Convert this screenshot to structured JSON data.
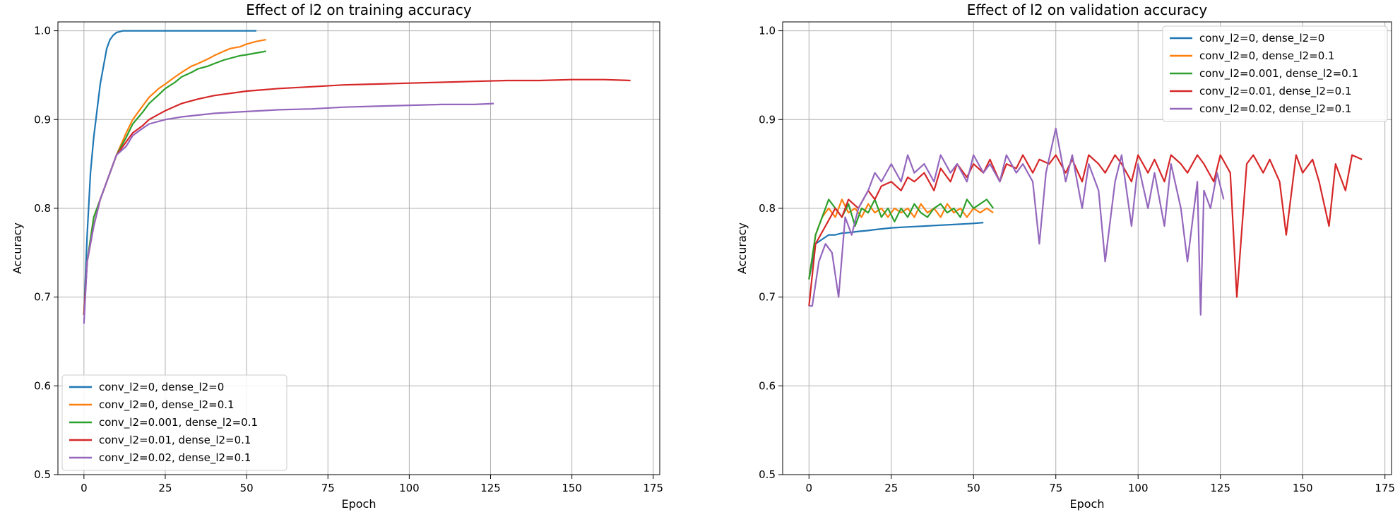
{
  "chart_data": [
    {
      "type": "line",
      "title": "Effect of l2 on training accuracy",
      "xlabel": "Epoch",
      "ylabel": "Accuracy",
      "xlim": [
        -8,
        177
      ],
      "ylim": [
        0.5,
        1.01
      ],
      "xticks": [
        0,
        25,
        50,
        75,
        100,
        125,
        150,
        175
      ],
      "yticks": [
        0.5,
        0.6,
        0.7,
        0.8,
        0.9,
        1.0
      ],
      "ytick_labels": [
        "0.5",
        "0.6",
        "0.7",
        "0.8",
        "0.9",
        "1.0"
      ],
      "grid": true,
      "legend_position": "lower-left",
      "series": [
        {
          "name": "conv_l2=0, dense_l2=0",
          "color": "#1f77b4",
          "x": [
            0,
            1,
            2,
            3,
            4,
            5,
            6,
            7,
            8,
            9,
            10,
            11,
            12,
            14,
            20,
            30,
            40,
            53
          ],
          "y": [
            0.68,
            0.77,
            0.84,
            0.88,
            0.91,
            0.94,
            0.96,
            0.98,
            0.99,
            0.995,
            0.998,
            0.999,
            1.0,
            1.0,
            1.0,
            1.0,
            1.0,
            1.0
          ]
        },
        {
          "name": "conv_l2=0, dense_l2=0.1",
          "color": "#ff7f0e",
          "x": [
            0,
            1,
            3,
            5,
            8,
            10,
            13,
            15,
            18,
            20,
            23,
            25,
            28,
            30,
            33,
            35,
            38,
            40,
            43,
            45,
            48,
            50,
            53,
            56
          ],
          "y": [
            0.68,
            0.74,
            0.79,
            0.81,
            0.84,
            0.86,
            0.885,
            0.9,
            0.915,
            0.925,
            0.935,
            0.94,
            0.948,
            0.953,
            0.96,
            0.963,
            0.968,
            0.972,
            0.977,
            0.98,
            0.982,
            0.985,
            0.988,
            0.99
          ]
        },
        {
          "name": "conv_l2=0.001, dense_l2=0.1",
          "color": "#2ca02c",
          "x": [
            0,
            1,
            3,
            5,
            8,
            10,
            13,
            15,
            18,
            20,
            23,
            25,
            28,
            30,
            33,
            35,
            38,
            40,
            43,
            45,
            48,
            50,
            53,
            56
          ],
          "y": [
            0.68,
            0.74,
            0.79,
            0.81,
            0.84,
            0.86,
            0.88,
            0.895,
            0.908,
            0.918,
            0.928,
            0.935,
            0.942,
            0.948,
            0.953,
            0.957,
            0.96,
            0.963,
            0.967,
            0.969,
            0.972,
            0.973,
            0.975,
            0.977
          ]
        },
        {
          "name": "conv_l2=0.01, dense_l2=0.1",
          "color": "#d62728",
          "x": [
            0,
            1,
            3,
            5,
            8,
            10,
            13,
            15,
            18,
            20,
            25,
            30,
            35,
            40,
            50,
            60,
            70,
            80,
            90,
            100,
            110,
            120,
            130,
            140,
            150,
            160,
            168
          ],
          "y": [
            0.68,
            0.74,
            0.78,
            0.81,
            0.84,
            0.86,
            0.875,
            0.885,
            0.893,
            0.9,
            0.91,
            0.918,
            0.923,
            0.927,
            0.932,
            0.935,
            0.937,
            0.939,
            0.94,
            0.941,
            0.942,
            0.943,
            0.944,
            0.944,
            0.945,
            0.945,
            0.944
          ]
        },
        {
          "name": "conv_l2=0.02, dense_l2=0.1",
          "color": "#9467bd",
          "x": [
            0,
            1,
            3,
            5,
            8,
            10,
            13,
            15,
            18,
            20,
            25,
            30,
            35,
            40,
            50,
            60,
            70,
            80,
            90,
            100,
            110,
            120,
            126
          ],
          "y": [
            0.67,
            0.74,
            0.78,
            0.81,
            0.84,
            0.86,
            0.87,
            0.882,
            0.89,
            0.895,
            0.9,
            0.903,
            0.905,
            0.907,
            0.909,
            0.911,
            0.912,
            0.914,
            0.915,
            0.916,
            0.917,
            0.917,
            0.918
          ]
        }
      ]
    },
    {
      "type": "line",
      "title": "Effect of l2 on validation accuracy",
      "xlabel": "Epoch",
      "ylabel": "Accuracy",
      "xlim": [
        -8,
        177
      ],
      "ylim": [
        0.5,
        1.01
      ],
      "xticks": [
        0,
        25,
        50,
        75,
        100,
        125,
        150,
        175
      ],
      "yticks": [
        0.5,
        0.6,
        0.7,
        0.8,
        0.9,
        1.0
      ],
      "ytick_labels": [
        "0.5",
        "0.6",
        "0.7",
        "0.8",
        "0.9",
        "1.0"
      ],
      "grid": true,
      "legend_position": "upper-right",
      "series": [
        {
          "name": "conv_l2=0, dense_l2=0",
          "color": "#1f77b4",
          "x": [
            0,
            2,
            4,
            6,
            8,
            10,
            13,
            15,
            18,
            20,
            25,
            30,
            35,
            40,
            45,
            50,
            53
          ],
          "y": [
            0.72,
            0.76,
            0.765,
            0.77,
            0.77,
            0.772,
            0.773,
            0.774,
            0.775,
            0.776,
            0.778,
            0.779,
            0.78,
            0.781,
            0.782,
            0.783,
            0.784
          ]
        },
        {
          "name": "conv_l2=0, dense_l2=0.1",
          "color": "#ff7f0e",
          "x": [
            0,
            2,
            4,
            6,
            8,
            10,
            12,
            14,
            16,
            18,
            20,
            22,
            24,
            26,
            28,
            30,
            32,
            34,
            36,
            38,
            40,
            42,
            44,
            46,
            48,
            50,
            52,
            54,
            56
          ],
          "y": [
            0.72,
            0.77,
            0.79,
            0.8,
            0.79,
            0.81,
            0.795,
            0.8,
            0.79,
            0.805,
            0.795,
            0.8,
            0.79,
            0.8,
            0.795,
            0.8,
            0.79,
            0.805,
            0.795,
            0.8,
            0.79,
            0.805,
            0.795,
            0.8,
            0.79,
            0.8,
            0.795,
            0.8,
            0.795
          ]
        },
        {
          "name": "conv_l2=0.001, dense_l2=0.1",
          "color": "#2ca02c",
          "x": [
            0,
            2,
            4,
            6,
            8,
            10,
            12,
            14,
            16,
            18,
            20,
            22,
            24,
            26,
            28,
            30,
            32,
            34,
            36,
            38,
            40,
            42,
            44,
            46,
            48,
            50,
            52,
            54,
            56
          ],
          "y": [
            0.72,
            0.77,
            0.79,
            0.81,
            0.8,
            0.79,
            0.805,
            0.78,
            0.8,
            0.795,
            0.81,
            0.79,
            0.8,
            0.785,
            0.8,
            0.79,
            0.805,
            0.795,
            0.79,
            0.8,
            0.805,
            0.795,
            0.8,
            0.79,
            0.81,
            0.8,
            0.805,
            0.81,
            0.8
          ]
        },
        {
          "name": "conv_l2=0.01, dense_l2=0.1",
          "color": "#d62728",
          "x": [
            0,
            2,
            5,
            8,
            10,
            12,
            15,
            18,
            20,
            22,
            25,
            28,
            30,
            32,
            35,
            38,
            40,
            43,
            45,
            48,
            50,
            53,
            55,
            58,
            60,
            63,
            65,
            68,
            70,
            73,
            75,
            78,
            80,
            83,
            85,
            88,
            90,
            93,
            95,
            98,
            100,
            103,
            105,
            108,
            110,
            113,
            115,
            118,
            120,
            123,
            125,
            128,
            130,
            133,
            135,
            138,
            140,
            143,
            145,
            148,
            150,
            153,
            155,
            158,
            160,
            163,
            165,
            168
          ],
          "y": [
            0.69,
            0.76,
            0.78,
            0.8,
            0.79,
            0.81,
            0.8,
            0.82,
            0.81,
            0.825,
            0.83,
            0.82,
            0.835,
            0.83,
            0.84,
            0.82,
            0.845,
            0.83,
            0.85,
            0.835,
            0.85,
            0.84,
            0.855,
            0.83,
            0.85,
            0.845,
            0.86,
            0.84,
            0.855,
            0.85,
            0.86,
            0.84,
            0.855,
            0.83,
            0.86,
            0.85,
            0.84,
            0.86,
            0.85,
            0.83,
            0.86,
            0.84,
            0.855,
            0.83,
            0.86,
            0.85,
            0.84,
            0.86,
            0.85,
            0.83,
            0.86,
            0.84,
            0.7,
            0.85,
            0.86,
            0.84,
            0.855,
            0.83,
            0.77,
            0.86,
            0.84,
            0.855,
            0.83,
            0.78,
            0.85,
            0.82,
            0.86,
            0.855
          ]
        },
        {
          "name": "conv_l2=0.02, dense_l2=0.1",
          "color": "#9467bd",
          "x": [
            0,
            1,
            3,
            5,
            7,
            9,
            11,
            13,
            15,
            18,
            20,
            22,
            25,
            28,
            30,
            32,
            35,
            38,
            40,
            43,
            45,
            48,
            50,
            53,
            55,
            58,
            60,
            63,
            65,
            68,
            70,
            72,
            75,
            78,
            80,
            83,
            85,
            88,
            90,
            93,
            95,
            98,
            100,
            103,
            105,
            108,
            110,
            113,
            115,
            118,
            119,
            120,
            122,
            124,
            126
          ],
          "y": [
            0.69,
            0.69,
            0.74,
            0.76,
            0.75,
            0.7,
            0.79,
            0.77,
            0.8,
            0.82,
            0.84,
            0.83,
            0.85,
            0.83,
            0.86,
            0.84,
            0.85,
            0.83,
            0.86,
            0.84,
            0.85,
            0.83,
            0.86,
            0.84,
            0.85,
            0.83,
            0.86,
            0.84,
            0.85,
            0.83,
            0.76,
            0.84,
            0.89,
            0.83,
            0.86,
            0.8,
            0.85,
            0.82,
            0.74,
            0.83,
            0.86,
            0.78,
            0.85,
            0.8,
            0.84,
            0.78,
            0.85,
            0.8,
            0.74,
            0.83,
            0.68,
            0.82,
            0.8,
            0.84,
            0.81
          ]
        }
      ]
    }
  ]
}
